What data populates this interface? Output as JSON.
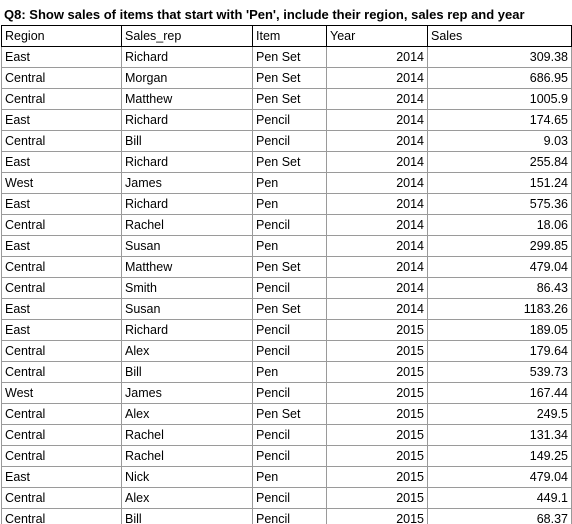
{
  "title": "Q8: Show sales of items that start with 'Pen', include their region, sales rep and year",
  "columns": [
    "Region",
    "Sales_rep",
    "Item",
    "Year",
    "Sales"
  ],
  "rows": [
    [
      "East",
      "Richard",
      "Pen Set",
      "2014",
      "309.38"
    ],
    [
      "Central",
      "Morgan",
      "Pen Set",
      "2014",
      "686.95"
    ],
    [
      "Central",
      "Matthew",
      "Pen Set",
      "2014",
      "1005.9"
    ],
    [
      "East",
      "Richard",
      "Pencil",
      "2014",
      "174.65"
    ],
    [
      "Central",
      "Bill",
      "Pencil",
      "2014",
      "9.03"
    ],
    [
      "East",
      "Richard",
      "Pen Set",
      "2014",
      "255.84"
    ],
    [
      "West",
      "James",
      "Pen",
      "2014",
      "151.24"
    ],
    [
      "East",
      "Richard",
      "Pen",
      "2014",
      "575.36"
    ],
    [
      "Central",
      "Rachel",
      "Pencil",
      "2014",
      "18.06"
    ],
    [
      "East",
      "Susan",
      "Pen",
      "2014",
      "299.85"
    ],
    [
      "Central",
      "Matthew",
      "Pen Set",
      "2014",
      "479.04"
    ],
    [
      "Central",
      "Smith",
      "Pencil",
      "2014",
      "86.43"
    ],
    [
      "East",
      "Susan",
      "Pen Set",
      "2014",
      "1183.26"
    ],
    [
      "East",
      "Richard",
      "Pencil",
      "2015",
      "189.05"
    ],
    [
      "Central",
      "Alex",
      "Pencil",
      "2015",
      "179.64"
    ],
    [
      "Central",
      "Bill",
      "Pen",
      "2015",
      "539.73"
    ],
    [
      "West",
      "James",
      "Pencil",
      "2015",
      "167.44"
    ],
    [
      "Central",
      "Alex",
      "Pen Set",
      "2015",
      "249.5"
    ],
    [
      "Central",
      "Rachel",
      "Pencil",
      "2015",
      "131.34"
    ],
    [
      "Central",
      "Rachel",
      "Pencil",
      "2015",
      "149.25"
    ],
    [
      "East",
      "Nick",
      "Pen",
      "2015",
      "479.04"
    ],
    [
      "Central",
      "Alex",
      "Pencil",
      "2015",
      "449.1"
    ],
    [
      "Central",
      "Bill",
      "Pencil",
      "2015",
      "68.37"
    ]
  ]
}
